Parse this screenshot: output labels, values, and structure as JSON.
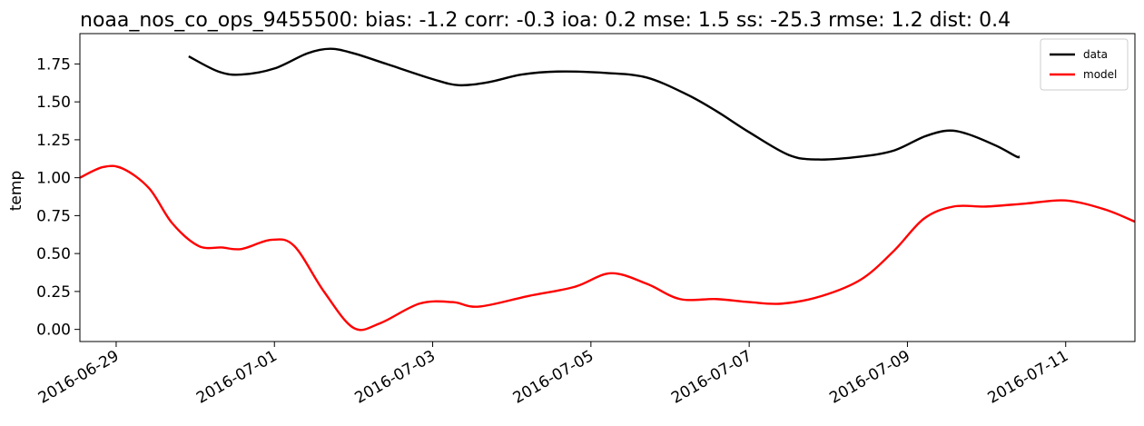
{
  "chart_data": {
    "type": "line",
    "title": "noaa_nos_co_ops_9455500: bias: -1.2  corr: -0.3  ioa: 0.2  mse: 1.5  ss: -25.3  rmse: 1.2  dist: 0.4",
    "xlabel": "",
    "ylabel": "temp",
    "xlim": [
      "2016-06-28 13:00",
      "2016-07-11 21:00"
    ],
    "ylim": [
      -0.08,
      1.95
    ],
    "x_ticks": [
      "2016-06-29",
      "2016-07-01",
      "2016-07-03",
      "2016-07-05",
      "2016-07-07",
      "2016-07-09",
      "2016-07-11"
    ],
    "y_ticks": [
      0.0,
      0.25,
      0.5,
      0.75,
      1.0,
      1.25,
      1.5,
      1.75
    ],
    "y_tick_labels": [
      "0.00",
      "0.25",
      "0.50",
      "0.75",
      "1.00",
      "1.25",
      "1.50",
      "1.75"
    ],
    "grid": false,
    "legend_position": "top-right",
    "series": [
      {
        "name": "data",
        "color": "#000000",
        "points": [
          [
            "2016-06-29 22:00",
            1.8
          ],
          [
            "2016-06-30 07:00",
            1.7
          ],
          [
            "2016-06-30 14:00",
            1.68
          ],
          [
            "2016-07-01 00:00",
            1.72
          ],
          [
            "2016-07-01 10:00",
            1.82
          ],
          [
            "2016-07-01 17:00",
            1.85
          ],
          [
            "2016-07-02 00:00",
            1.82
          ],
          [
            "2016-07-02 10:00",
            1.75
          ],
          [
            "2016-07-03 00:00",
            1.65
          ],
          [
            "2016-07-03 08:00",
            1.61
          ],
          [
            "2016-07-03 17:00",
            1.63
          ],
          [
            "2016-07-04 03:00",
            1.68
          ],
          [
            "2016-07-04 14:00",
            1.7
          ],
          [
            "2016-07-05 05:00",
            1.69
          ],
          [
            "2016-07-05 17:00",
            1.66
          ],
          [
            "2016-07-06 05:00",
            1.55
          ],
          [
            "2016-07-06 14:00",
            1.44
          ],
          [
            "2016-07-07 00:00",
            1.3
          ],
          [
            "2016-07-07 12:00",
            1.15
          ],
          [
            "2016-07-07 21:00",
            1.12
          ],
          [
            "2016-07-08 10:00",
            1.14
          ],
          [
            "2016-07-08 20:00",
            1.18
          ],
          [
            "2016-07-09 05:00",
            1.27
          ],
          [
            "2016-07-09 12:00",
            1.31
          ],
          [
            "2016-07-09 18:00",
            1.29
          ],
          [
            "2016-07-10 03:00",
            1.21
          ],
          [
            "2016-07-10 09:00",
            1.14
          ],
          [
            "2016-07-10 10:00",
            1.14
          ]
        ]
      },
      {
        "name": "model",
        "color": "#ff0000",
        "points": [
          [
            "2016-06-28 13:00",
            1.0
          ],
          [
            "2016-06-28 20:00",
            1.07
          ],
          [
            "2016-06-29 02:00",
            1.06
          ],
          [
            "2016-06-29 10:00",
            0.93
          ],
          [
            "2016-06-29 17:00",
            0.7
          ],
          [
            "2016-06-30 01:00",
            0.55
          ],
          [
            "2016-06-30 08:00",
            0.54
          ],
          [
            "2016-06-30 14:00",
            0.53
          ],
          [
            "2016-06-30 23:00",
            0.59
          ],
          [
            "2016-07-01 06:00",
            0.55
          ],
          [
            "2016-07-01 15:00",
            0.25
          ],
          [
            "2016-07-02 00:00",
            0.01
          ],
          [
            "2016-07-02 08:00",
            0.04
          ],
          [
            "2016-07-02 20:00",
            0.17
          ],
          [
            "2016-07-03 06:00",
            0.18
          ],
          [
            "2016-07-03 14:00",
            0.15
          ],
          [
            "2016-07-04 05:00",
            0.22
          ],
          [
            "2016-07-04 19:00",
            0.28
          ],
          [
            "2016-07-05 06:00",
            0.37
          ],
          [
            "2016-07-05 17:00",
            0.3
          ],
          [
            "2016-07-06 03:00",
            0.2
          ],
          [
            "2016-07-06 14:00",
            0.2
          ],
          [
            "2016-07-07 00:00",
            0.18
          ],
          [
            "2016-07-07 10:00",
            0.17
          ],
          [
            "2016-07-07 22:00",
            0.22
          ],
          [
            "2016-07-08 10:00",
            0.33
          ],
          [
            "2016-07-08 20:00",
            0.52
          ],
          [
            "2016-07-09 05:00",
            0.73
          ],
          [
            "2016-07-09 14:00",
            0.81
          ],
          [
            "2016-07-10 00:00",
            0.81
          ],
          [
            "2016-07-10 12:00",
            0.83
          ],
          [
            "2016-07-11 00:00",
            0.85
          ],
          [
            "2016-07-11 12:00",
            0.79
          ],
          [
            "2016-07-11 21:00",
            0.71
          ]
        ]
      }
    ]
  }
}
